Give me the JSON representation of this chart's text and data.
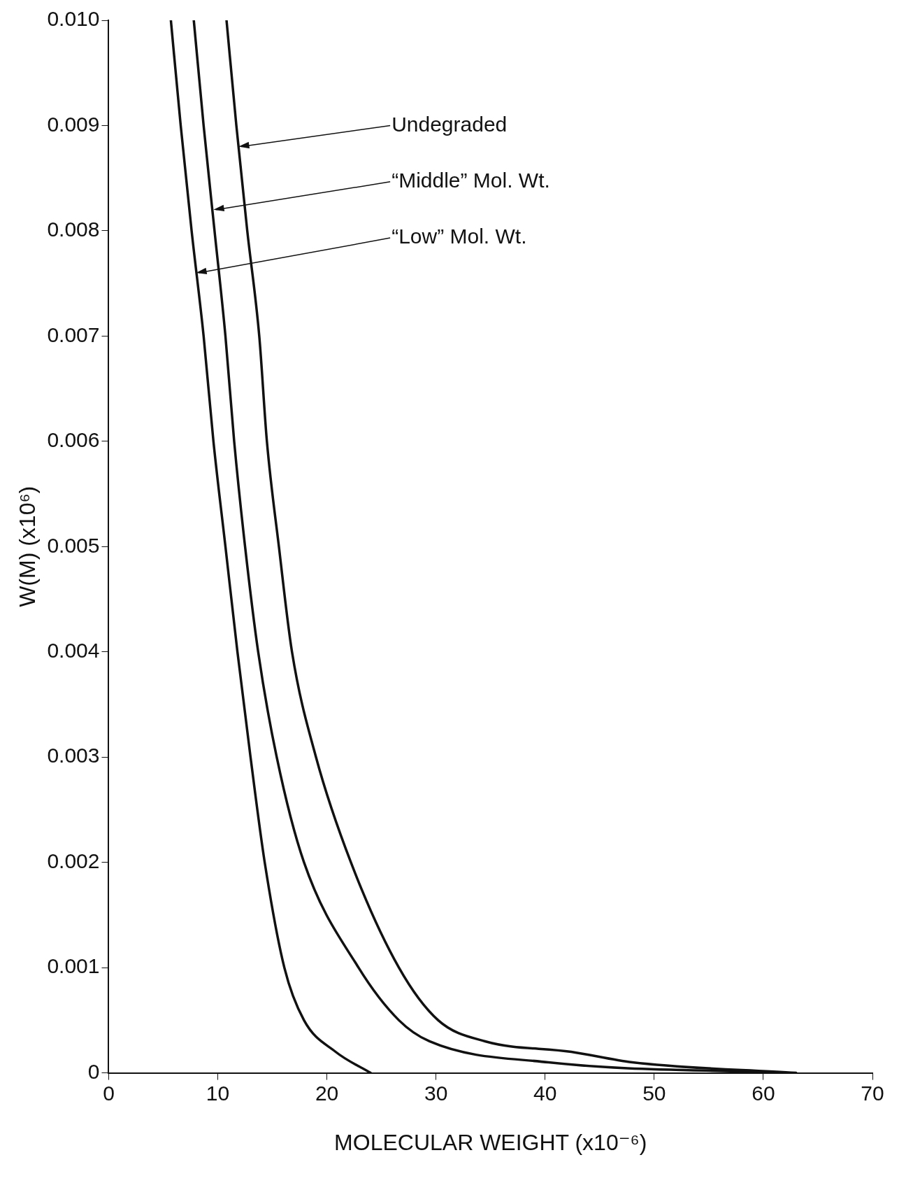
{
  "chart_data": {
    "type": "line",
    "xlabel": "MOLECULAR WEIGHT (x10⁻⁶)",
    "ylabel": "W(M) (x10⁶)",
    "xlim": [
      0,
      70
    ],
    "xticks": [
      0,
      10,
      20,
      30,
      40,
      50,
      60,
      70
    ],
    "ylim": [
      0,
      0.01
    ],
    "yticks": [
      0,
      0.001,
      0.002,
      0.003,
      0.004,
      0.005,
      0.006,
      0.007,
      0.008,
      0.009,
      {
        "value": 0.01,
        "label": "0.010"
      }
    ],
    "marker": "none",
    "line_style": "solid",
    "series": [
      {
        "color": "#111111",
        "x": [
          10.8,
          11.7,
          12.7,
          13.8,
          14.5,
          15.6,
          16.8,
          19.0,
          22.2,
          26.6,
          30.2,
          34.5,
          42.4,
          48,
          63
        ],
        "values": [
          0.01,
          0.009,
          0.008,
          0.007,
          0.006,
          0.005,
          0.004,
          0.003,
          0.002,
          0.001,
          0.0005,
          0.0003,
          0.0002,
          0.0001,
          0
        ]
      },
      {
        "color": "#111111",
        "x": [
          7.8,
          8.7,
          9.7,
          10.7,
          11.5,
          12.5,
          13.7,
          15.4,
          17.9,
          22.9,
          26.6,
          29.4,
          40.3,
          62
        ],
        "values": [
          0.01,
          0.009,
          0.008,
          0.007,
          0.006,
          0.005,
          0.004,
          0.003,
          0.002,
          0.001,
          0.0005,
          0.0003,
          0.0001,
          0
        ]
      },
      {
        "color": "#111111",
        "x": [
          5.7,
          6.6,
          7.6,
          8.7,
          9.6,
          10.7,
          11.8,
          13.0,
          14.3,
          16.1,
          17.9,
          20.8,
          24.0
        ],
        "values": [
          0.01,
          0.009,
          0.008,
          0.007,
          0.006,
          0.005,
          0.004,
          0.003,
          0.002,
          0.001,
          0.0005,
          0.0002,
          0
        ]
      }
    ],
    "annotations": [
      {
        "text": "Undegraded",
        "x": 11.9,
        "y": 0.0088
      },
      {
        "text": "“Middle” Mol. Wt.",
        "x": 9.6,
        "y": 0.0082
      },
      {
        "text": "“Low” Mol. Wt.",
        "x": 8.0,
        "y": 0.0076
      }
    ]
  }
}
